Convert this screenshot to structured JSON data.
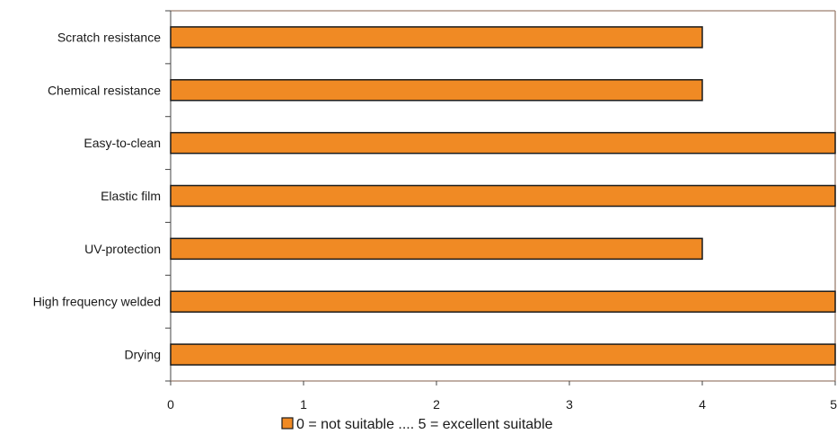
{
  "chart_data": {
    "type": "bar",
    "orientation": "horizontal",
    "categories": [
      "Scratch resistance",
      "Chemical resistance",
      "Easy-to-clean",
      "Elastic film",
      "UV-protection",
      "High frequency welded",
      "Drying"
    ],
    "series": [
      {
        "name": "0 = not suitable .... 5 = excellent suitable",
        "values": [
          4,
          4,
          5,
          5,
          4,
          5,
          5
        ]
      }
    ],
    "xlim": [
      0,
      5
    ],
    "xticks": [
      "0",
      "1",
      "2",
      "3",
      "4",
      "5"
    ],
    "grid": false,
    "legend_position": "bottom",
    "colors": {
      "bar_fill": "#f08a24",
      "bar_stroke": "#1a1a1a",
      "plot_border": "#9c7f6f",
      "axis": "#444444"
    }
  }
}
